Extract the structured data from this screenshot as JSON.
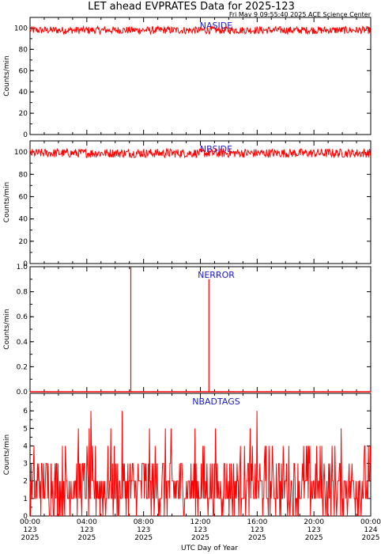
{
  "title": "LET ahead EVPRATES Data for 2025-123",
  "subtitle": "Fri May  9 09:55:40 2025 ACE Science Center",
  "xlabel": "UTC Day of Year",
  "colors": {
    "series": "#ff0000",
    "panel_title": "#1a1acc",
    "axis": "#000000"
  },
  "chart_data": [
    {
      "type": "line",
      "title": "NASIDE",
      "ylabel": "Counts/min",
      "ylim": [
        0,
        110
      ],
      "yticks": [
        "0",
        "20",
        "40",
        "60",
        "80",
        "100"
      ],
      "ytick_values": [
        0,
        20,
        40,
        60,
        80,
        100
      ],
      "series": [
        {
          "name": "NASIDE",
          "baseline": 98,
          "spread": 3.5,
          "samples": 600
        }
      ]
    },
    {
      "type": "line",
      "title": "NBSIDE",
      "ylabel": "Counts/min",
      "ylim": [
        0,
        110
      ],
      "yticks": [
        "0",
        "20",
        "40",
        "60",
        "80",
        "100"
      ],
      "ytick_values": [
        0,
        20,
        40,
        60,
        80,
        100
      ],
      "series": [
        {
          "name": "NBSIDE",
          "baseline": 99,
          "spread": 4,
          "samples": 600
        }
      ]
    },
    {
      "type": "line",
      "title": "NERROR",
      "ylabel": "Counts/min",
      "ylim": [
        0,
        1.0
      ],
      "yticks": [
        "0.0",
        "0.2",
        "0.4",
        "0.6",
        "0.8",
        "1.0"
      ],
      "ytick_values": [
        0,
        0.2,
        0.4,
        0.6,
        0.8,
        1.0
      ],
      "spikes": [
        {
          "hour": 7.1,
          "value": 1.0
        },
        {
          "hour": 12.6,
          "value": 0.9
        }
      ]
    },
    {
      "type": "line",
      "title": "NBADTAGS",
      "ylabel": "Counts/min",
      "ylim": [
        0,
        7
      ],
      "yticks": [
        "0",
        "1",
        "2",
        "3",
        "4",
        "5",
        "6"
      ],
      "ytick_values": [
        0,
        1,
        2,
        3,
        4,
        5,
        6
      ],
      "series": [
        {
          "name": "NBADTAGS",
          "range": [
            0,
            6
          ],
          "samples": 600
        }
      ]
    }
  ],
  "x_axis": {
    "range_hours": [
      0,
      24
    ],
    "ticks": [
      {
        "hour": 0,
        "time": "00:00",
        "doy": "123",
        "year": "2025"
      },
      {
        "hour": 4,
        "time": "04:00",
        "doy": "123",
        "year": "2025"
      },
      {
        "hour": 8,
        "time": "08:00",
        "doy": "123",
        "year": "2025"
      },
      {
        "hour": 12,
        "time": "12:00",
        "doy": "123",
        "year": "2025"
      },
      {
        "hour": 16,
        "time": "16:00",
        "doy": "123",
        "year": "2025"
      },
      {
        "hour": 20,
        "time": "20:00",
        "doy": "123",
        "year": "2025"
      },
      {
        "hour": 24,
        "time": "00:00",
        "doy": "124",
        "year": "2025"
      }
    ]
  }
}
